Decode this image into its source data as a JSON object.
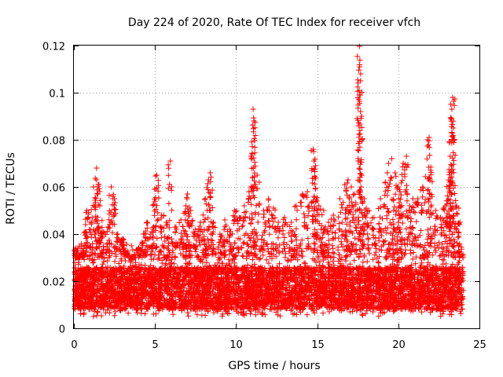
{
  "chart_data": {
    "type": "scatter",
    "title": "Day 224 of 2020, Rate Of TEC Index for receiver vfch",
    "xlabel": "GPS time / hours",
    "ylabel": "ROTI / TECUs",
    "xlim": [
      0,
      25
    ],
    "ylim": [
      0,
      0.12
    ],
    "xticks": [
      0,
      5,
      10,
      15,
      20,
      25
    ],
    "xtick_labels": [
      "0",
      "5",
      "10",
      "15",
      "20",
      "25"
    ],
    "yticks": [
      0,
      0.02,
      0.04,
      0.06,
      0.08,
      0.1,
      0.12
    ],
    "ytick_labels": [
      "0",
      "0.02",
      "0.04",
      "0.06",
      "0.08",
      "0.1",
      "0.12"
    ],
    "grid": true,
    "marker": "+",
    "marker_color": "#ff0000",
    "series": [
      {
        "name": "ROTI",
        "note": "dense band of ~6000 points, 0.005-0.035 TECU/s, spanning 0-24 h",
        "x": [
          0.1,
          0.2,
          0.3,
          0.5,
          0.7,
          0.8,
          1.0,
          1.2,
          1.4,
          1.5,
          1.6,
          1.8,
          2.1,
          2.3,
          2.5,
          2.7,
          3.0,
          3.2,
          3.5,
          3.8,
          4.0,
          4.3,
          4.5,
          4.8,
          5.0,
          5.1,
          5.4,
          5.7,
          5.95,
          6.3,
          6.6,
          6.9,
          7.0,
          7.2,
          7.5,
          7.8,
          8.1,
          8.3,
          8.4,
          8.6,
          9.0,
          9.3,
          9.6,
          9.9,
          10.2,
          10.5,
          10.8,
          11.0,
          11.05,
          11.1,
          11.3,
          11.7,
          12.0,
          12.3,
          12.6,
          13.0,
          13.4,
          13.7,
          14.1,
          14.4,
          14.75,
          14.8,
          14.9,
          15.1,
          15.4,
          15.7,
          16.0,
          16.4,
          16.7,
          16.9,
          17.1,
          17.3,
          17.6,
          17.62,
          17.65,
          17.7,
          17.9,
          18.2,
          18.5,
          18.9,
          19.2,
          19.4,
          19.6,
          19.8,
          20.0,
          20.1,
          20.3,
          20.5,
          20.7,
          20.9,
          21.2,
          21.5,
          21.8,
          21.9,
          22.0,
          22.3,
          22.6,
          22.9,
          23.1,
          23.2,
          23.25,
          23.3,
          23.35,
          23.4,
          23.6,
          23.8
        ],
        "y": [
          0.034,
          0.03,
          0.028,
          0.032,
          0.041,
          0.05,
          0.045,
          0.06,
          0.068,
          0.061,
          0.052,
          0.041,
          0.043,
          0.06,
          0.055,
          0.04,
          0.038,
          0.033,
          0.028,
          0.03,
          0.034,
          0.04,
          0.045,
          0.041,
          0.059,
          0.065,
          0.048,
          0.045,
          0.071,
          0.043,
          0.046,
          0.052,
          0.057,
          0.05,
          0.042,
          0.045,
          0.055,
          0.063,
          0.066,
          0.045,
          0.04,
          0.046,
          0.042,
          0.05,
          0.047,
          0.052,
          0.058,
          0.074,
          0.093,
          0.088,
          0.065,
          0.05,
          0.055,
          0.051,
          0.045,
          0.047,
          0.045,
          0.052,
          0.057,
          0.058,
          0.076,
          0.071,
          0.069,
          0.052,
          0.05,
          0.045,
          0.048,
          0.055,
          0.061,
          0.063,
          0.06,
          0.057,
          0.12,
          0.111,
          0.099,
          0.06,
          0.055,
          0.05,
          0.047,
          0.055,
          0.062,
          0.07,
          0.072,
          0.066,
          0.06,
          0.058,
          0.07,
          0.073,
          0.052,
          0.055,
          0.055,
          0.06,
          0.08,
          0.081,
          0.067,
          0.05,
          0.047,
          0.052,
          0.063,
          0.073,
          0.089,
          0.093,
          0.098,
          0.085,
          0.052,
          0.045
        ],
        "band": {
          "x_range": [
            0,
            24
          ],
          "y_core": [
            0.008,
            0.026
          ],
          "y_outer": [
            0.005,
            0.036
          ],
          "count": 6000
        }
      }
    ]
  }
}
